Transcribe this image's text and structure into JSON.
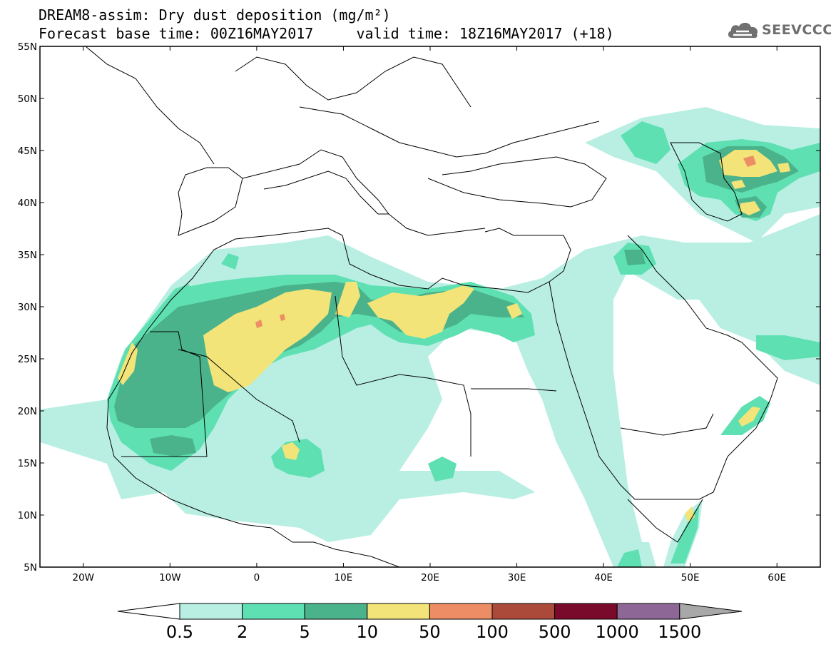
{
  "header": {
    "title_line1": "DREAM8-assim: Dry dust deposition (mg/m²)",
    "title_line2": "Forecast base time: 00Z16MAY2017     valid time: 18Z16MAY2017 (+18)",
    "logo_text": "SEEVCCC"
  },
  "map": {
    "lon_range": [
      -25,
      65
    ],
    "lat_range": [
      5,
      55
    ],
    "lat_labels": [
      "55N",
      "50N",
      "45N",
      "40N",
      "35N",
      "30N",
      "25N",
      "20N",
      "15N",
      "10N",
      "5N"
    ],
    "lat_values": [
      55,
      50,
      45,
      40,
      35,
      30,
      25,
      20,
      15,
      10,
      5
    ],
    "lon_labels": [
      "20W",
      "10W",
      "0",
      "10E",
      "20E",
      "30E",
      "40E",
      "50E",
      "60E"
    ],
    "lon_values": [
      -20,
      -10,
      0,
      10,
      20,
      30,
      40,
      50,
      60
    ],
    "field": "dry dust deposition"
  },
  "legend": {
    "levels": [
      "0.5",
      "2",
      "5",
      "10",
      "50",
      "100",
      "500",
      "1000",
      "1500"
    ],
    "colors": [
      "#b9efe3",
      "#5ee0b3",
      "#4bb38c",
      "#f2e478",
      "#ec8d66",
      "#ab4a3a",
      "#7a0a2b",
      "#8d6897"
    ],
    "under_color": "#ffffff",
    "over_color": "#a8a8a8"
  }
}
